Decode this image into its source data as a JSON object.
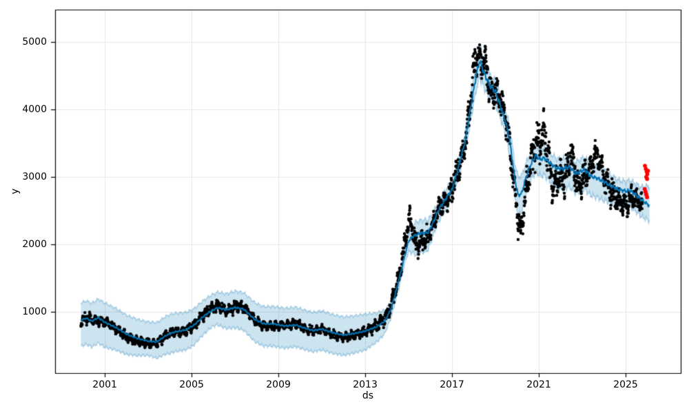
{
  "figure": {
    "background": "#ffffff",
    "kind": "prophet-forecast-plot"
  },
  "chart_data": {
    "type": "scatter+line+band",
    "title": "",
    "xlabel": "ds",
    "ylabel": "y",
    "grid": true,
    "legend": "none",
    "x_ticks": [
      "2001",
      "2005",
      "2009",
      "2013",
      "2017",
      "2021",
      "2025"
    ],
    "x_tick_years": [
      2001,
      2005,
      2009,
      2013,
      2017,
      2021,
      2025
    ],
    "y_ticks": [
      "1000",
      "2000",
      "3000",
      "4000",
      "5000"
    ],
    "y_tick_values": [
      1000,
      2000,
      3000,
      4000,
      5000
    ],
    "x_range": [
      1998.71,
      2027.54
    ],
    "y_range": [
      92,
      5480
    ],
    "colors": {
      "observations": "#000000",
      "trend_line": "#0072b2",
      "band_fill": "rgba(0,114,178,0.2)",
      "band_edge": "rgba(0,114,178,0.3)",
      "anomaly": "#ff0000",
      "grid": "#e6e6e6",
      "spine": "#000000"
    },
    "trend": [
      [
        1999.9,
        880
      ],
      [
        2000.15,
        905
      ],
      [
        2000.4,
        860
      ],
      [
        2000.7,
        915
      ],
      [
        2001.0,
        845
      ],
      [
        2001.5,
        770
      ],
      [
        2002.0,
        670
      ],
      [
        2002.5,
        605
      ],
      [
        2003.0,
        565
      ],
      [
        2003.4,
        555
      ],
      [
        2003.8,
        645
      ],
      [
        2004.2,
        700
      ],
      [
        2004.7,
        730
      ],
      [
        2005.1,
        800
      ],
      [
        2005.5,
        920
      ],
      [
        2005.9,
        1015
      ],
      [
        2006.2,
        1060
      ],
      [
        2006.6,
        1030
      ],
      [
        2007.0,
        1065
      ],
      [
        2007.4,
        1040
      ],
      [
        2007.9,
        890
      ],
      [
        2008.3,
        825
      ],
      [
        2008.8,
        820
      ],
      [
        2009.3,
        790
      ],
      [
        2009.8,
        805
      ],
      [
        2010.2,
        760
      ],
      [
        2010.6,
        723
      ],
      [
        2011.0,
        745
      ],
      [
        2011.5,
        690
      ],
      [
        2012.0,
        655
      ],
      [
        2012.5,
        680
      ],
      [
        2013.0,
        715
      ],
      [
        2013.5,
        775
      ],
      [
        2013.9,
        860
      ],
      [
        2014.2,
        1050
      ],
      [
        2014.5,
        1400
      ],
      [
        2014.8,
        1800
      ],
      [
        2015.0,
        2050
      ],
      [
        2015.2,
        2120
      ],
      [
        2015.5,
        2160
      ],
      [
        2015.9,
        2180
      ],
      [
        2016.1,
        2300
      ],
      [
        2016.4,
        2520
      ],
      [
        2016.8,
        2720
      ],
      [
        2017.0,
        2810
      ],
      [
        2017.3,
        3150
      ],
      [
        2017.6,
        3520
      ],
      [
        2017.9,
        4100
      ],
      [
        2018.1,
        4480
      ],
      [
        2018.27,
        4724
      ],
      [
        2018.5,
        4520
      ],
      [
        2018.75,
        4350
      ],
      [
        2019.0,
        4270
      ],
      [
        2019.2,
        4080
      ],
      [
        2019.45,
        3840
      ],
      [
        2019.65,
        3560
      ],
      [
        2019.9,
        2960
      ],
      [
        2020.05,
        2727
      ],
      [
        2020.2,
        2750
      ],
      [
        2020.4,
        2980
      ],
      [
        2020.6,
        3160
      ],
      [
        2020.85,
        3320
      ],
      [
        2021.05,
        3260
      ],
      [
        2021.25,
        3280
      ],
      [
        2021.5,
        3210
      ],
      [
        2021.8,
        3130
      ],
      [
        2022.1,
        3120
      ],
      [
        2022.4,
        3150
      ],
      [
        2022.7,
        3050
      ],
      [
        2023.1,
        3110
      ],
      [
        2023.4,
        3010
      ],
      [
        2023.7,
        2980
      ],
      [
        2024.0,
        2930
      ],
      [
        2024.3,
        2870
      ],
      [
        2024.7,
        2810
      ],
      [
        2025.0,
        2790
      ],
      [
        2025.2,
        2800
      ],
      [
        2025.45,
        2740
      ],
      [
        2025.7,
        2670
      ],
      [
        2025.9,
        2620
      ],
      [
        2026.1,
        2570
      ]
    ],
    "uncertainty_band": [
      [
        1999.9,
        250,
        390
      ],
      [
        2001,
        285,
        370
      ],
      [
        2002,
        280,
        300
      ],
      [
        2003,
        285,
        210
      ],
      [
        2004,
        285,
        290
      ],
      [
        2005,
        245,
        300
      ],
      [
        2006,
        230,
        240
      ],
      [
        2007,
        240,
        300
      ],
      [
        2008,
        250,
        330
      ],
      [
        2009,
        260,
        330
      ],
      [
        2010,
        265,
        320
      ],
      [
        2011,
        268,
        310
      ],
      [
        2012,
        270,
        300
      ],
      [
        2013,
        250,
        280
      ],
      [
        2013.8,
        180,
        200
      ],
      [
        2014.2,
        110,
        130
      ],
      [
        2014.9,
        100,
        115
      ],
      [
        2015.3,
        190,
        290
      ],
      [
        2015.8,
        190,
        280
      ],
      [
        2016.2,
        150,
        180
      ],
      [
        2016.9,
        130,
        150
      ],
      [
        2017.6,
        130,
        150
      ],
      [
        2018.27,
        230,
        240
      ],
      [
        2018.8,
        150,
        180
      ],
      [
        2019.3,
        150,
        180
      ],
      [
        2019.9,
        240,
        280
      ],
      [
        2020.1,
        280,
        290
      ],
      [
        2020.5,
        200,
        230
      ],
      [
        2021,
        160,
        240
      ],
      [
        2022,
        140,
        300
      ],
      [
        2023,
        180,
        290
      ],
      [
        2024,
        170,
        280
      ],
      [
        2024.7,
        140,
        210
      ],
      [
        2025.2,
        150,
        240
      ],
      [
        2025.7,
        180,
        250
      ],
      [
        2026.1,
        300,
        220
      ]
    ],
    "observations": {
      "start": 1999.9,
      "end": 2025.78,
      "per_year": 110,
      "seed": 42,
      "offset": [
        [
          1999.9,
          -30
        ],
        [
          2000.3,
          40
        ],
        [
          2000.7,
          -50
        ],
        [
          2001.1,
          20
        ],
        [
          2001.6,
          -30
        ],
        [
          2002.1,
          -40
        ],
        [
          2002.6,
          -45
        ],
        [
          2003.1,
          -25
        ],
        [
          2003.6,
          -10
        ],
        [
          2004.1,
          15
        ],
        [
          2004.6,
          -25
        ],
        [
          2005.1,
          0
        ],
        [
          2005.6,
          25
        ],
        [
          2006.1,
          40
        ],
        [
          2006.6,
          -15
        ],
        [
          2007.1,
          25
        ],
        [
          2007.6,
          20
        ],
        [
          2008.1,
          -25
        ],
        [
          2008.7,
          -40
        ],
        [
          2009.3,
          10
        ],
        [
          2009.9,
          15
        ],
        [
          2010.4,
          -15
        ],
        [
          2010.9,
          5
        ],
        [
          2011.4,
          -15
        ],
        [
          2011.9,
          -30
        ],
        [
          2012.4,
          -25
        ],
        [
          2012.9,
          -10
        ],
        [
          2013.5,
          15
        ],
        [
          2014.0,
          40
        ],
        [
          2014.55,
          60
        ],
        [
          2014.85,
          180
        ],
        [
          2015.05,
          320
        ],
        [
          2015.35,
          -160
        ],
        [
          2015.65,
          -120
        ],
        [
          2015.95,
          -60
        ],
        [
          2016.3,
          30
        ],
        [
          2016.7,
          -40
        ],
        [
          2017.1,
          30
        ],
        [
          2017.5,
          -60
        ],
        [
          2017.8,
          60
        ],
        [
          2018.05,
          320
        ],
        [
          2018.3,
          60
        ],
        [
          2018.55,
          220
        ],
        [
          2018.8,
          -120
        ],
        [
          2019.1,
          60
        ],
        [
          2019.4,
          80
        ],
        [
          2019.7,
          -80
        ],
        [
          2019.95,
          -220
        ],
        [
          2020.15,
          -580
        ],
        [
          2020.35,
          -280
        ],
        [
          2020.6,
          40
        ],
        [
          2020.9,
          180
        ],
        [
          2021.25,
          400
        ],
        [
          2021.65,
          -330
        ],
        [
          2021.95,
          -120
        ],
        [
          2022.2,
          -160
        ],
        [
          2022.5,
          230
        ],
        [
          2022.85,
          -230
        ],
        [
          2023.2,
          -40
        ],
        [
          2023.65,
          380
        ],
        [
          2024.0,
          80
        ],
        [
          2024.35,
          -80
        ],
        [
          2024.7,
          -180
        ],
        [
          2025.05,
          -230
        ],
        [
          2025.35,
          -60
        ],
        [
          2025.6,
          -40
        ],
        [
          2025.78,
          -60
        ]
      ],
      "amplitude": [
        [
          1999.9,
          85
        ],
        [
          2001,
          80
        ],
        [
          2003,
          70
        ],
        [
          2005,
          80
        ],
        [
          2007,
          85
        ],
        [
          2009,
          70
        ],
        [
          2011,
          65
        ],
        [
          2013,
          70
        ],
        [
          2014,
          110
        ],
        [
          2014.8,
          170
        ],
        [
          2015.3,
          160
        ],
        [
          2016,
          150
        ],
        [
          2017,
          200
        ],
        [
          2017.8,
          260
        ],
        [
          2018.3,
          300
        ],
        [
          2019,
          240
        ],
        [
          2019.8,
          220
        ],
        [
          2020.2,
          240
        ],
        [
          2020.7,
          300
        ],
        [
          2021.3,
          300
        ],
        [
          2021.7,
          300
        ],
        [
          2022.3,
          260
        ],
        [
          2023,
          240
        ],
        [
          2023.7,
          200
        ],
        [
          2024.3,
          240
        ],
        [
          2025,
          200
        ],
        [
          2025.78,
          150
        ]
      ]
    },
    "anomalies_red": [
      [
        2025.89,
        3165
      ],
      [
        2025.93,
        3120
      ],
      [
        2025.97,
        3080
      ],
      [
        2026.0,
        3040
      ],
      [
        2026.03,
        3090
      ],
      [
        2025.95,
        3000
      ],
      [
        2025.99,
        2970
      ],
      [
        2025.88,
        2820
      ],
      [
        2025.92,
        2780
      ],
      [
        2025.95,
        2740
      ],
      [
        2025.99,
        2700
      ]
    ]
  }
}
